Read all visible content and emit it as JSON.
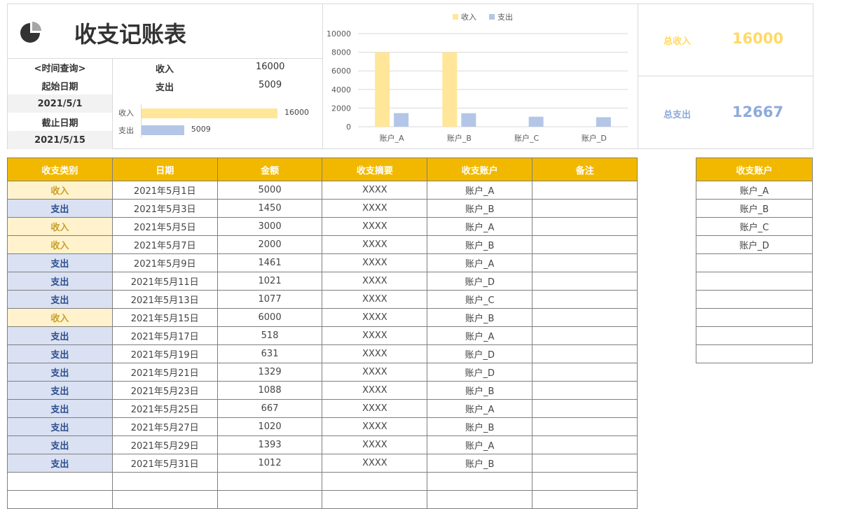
{
  "title": "收支记账表",
  "query": {
    "heading": "<时间查询>",
    "start_label": "起始日期",
    "start_date": "2021/5/1",
    "end_label": "截止日期",
    "end_date": "2021/5/15"
  },
  "summary_small": {
    "income_label": "收入",
    "income_value": "16000",
    "expense_label": "支出",
    "expense_value": "5009"
  },
  "mini_bar": {
    "income_label": "收入",
    "income_value": 16000,
    "income_text": "16000",
    "expense_label": "支出",
    "expense_value": 5009,
    "expense_text": "5009",
    "max": 16000
  },
  "totals": {
    "income_label": "总收入",
    "income_value": "16000",
    "expense_label": "总支出",
    "expense_value": "12667",
    "income_color": "#ffd966",
    "expense_color": "#8eaadb"
  },
  "chart_data": {
    "type": "bar",
    "categories": [
      "账户_A",
      "账户_B",
      "账户_C",
      "账户_D"
    ],
    "series": [
      {
        "name": "收入",
        "color": "#ffe699",
        "values": [
          8000,
          8000,
          0,
          0
        ]
      },
      {
        "name": "支出",
        "color": "#b4c6e7",
        "values": [
          1461,
          1450,
          1077,
          1021
        ]
      }
    ],
    "ylim": [
      0,
      10000
    ],
    "yticks": [
      "0",
      "2000",
      "4000",
      "6000",
      "8000",
      "10000"
    ],
    "legend": "top"
  },
  "table": {
    "headers": [
      "收支类别",
      "日期",
      "金额",
      "收支摘要",
      "收支账户",
      "备注"
    ],
    "rows": [
      [
        "收入",
        "2021年5月1日",
        "5000",
        "XXXX",
        "账户_A",
        ""
      ],
      [
        "支出",
        "2021年5月3日",
        "1450",
        "XXXX",
        "账户_B",
        ""
      ],
      [
        "收入",
        "2021年5月5日",
        "3000",
        "XXXX",
        "账户_A",
        ""
      ],
      [
        "收入",
        "2021年5月7日",
        "2000",
        "XXXX",
        "账户_B",
        ""
      ],
      [
        "支出",
        "2021年5月9日",
        "1461",
        "XXXX",
        "账户_A",
        ""
      ],
      [
        "支出",
        "2021年5月11日",
        "1021",
        "XXXX",
        "账户_D",
        ""
      ],
      [
        "支出",
        "2021年5月13日",
        "1077",
        "XXXX",
        "账户_C",
        ""
      ],
      [
        "收入",
        "2021年5月15日",
        "6000",
        "XXXX",
        "账户_B",
        ""
      ],
      [
        "支出",
        "2021年5月17日",
        "518",
        "XXXX",
        "账户_A",
        ""
      ],
      [
        "支出",
        "2021年5月19日",
        "631",
        "XXXX",
        "账户_D",
        ""
      ],
      [
        "支出",
        "2021年5月21日",
        "1329",
        "XXXX",
        "账户_D",
        ""
      ],
      [
        "支出",
        "2021年5月23日",
        "1088",
        "XXXX",
        "账户_B",
        ""
      ],
      [
        "支出",
        "2021年5月25日",
        "667",
        "XXXX",
        "账户_A",
        ""
      ],
      [
        "支出",
        "2021年5月27日",
        "1020",
        "XXXX",
        "账户_B",
        ""
      ],
      [
        "支出",
        "2021年5月29日",
        "1393",
        "XXXX",
        "账户_A",
        ""
      ],
      [
        "支出",
        "2021年5月31日",
        "1012",
        "XXXX",
        "账户_B",
        ""
      ]
    ]
  },
  "accounts": {
    "header": "收支账户",
    "items": [
      "账户_A",
      "账户_B",
      "账户_C",
      "账户_D"
    ]
  }
}
